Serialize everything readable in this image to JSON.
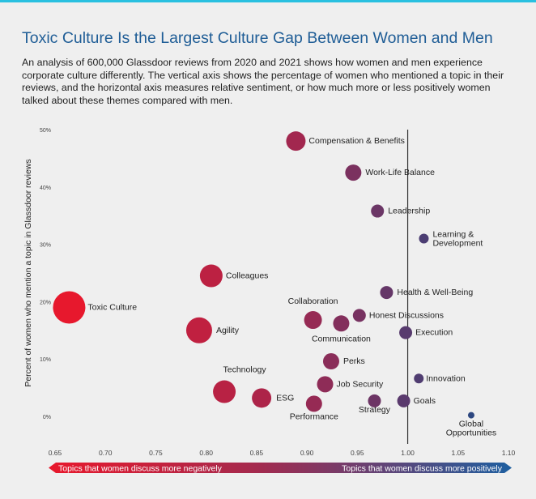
{
  "title": "Toxic Culture Is the Largest Culture Gap Between Women and Men",
  "subtitle": "An analysis of 600,000 Glassdoor reviews from 2020 and 2021 shows how women and men experience corporate culture differently. The vertical axis shows the percentage of women who mentioned a topic in their reviews, and the horizontal axis measures relative sentiment, or how much more or less positively women talked about these themes compared with men.",
  "colors": {
    "negative": "#e8182c",
    "positive": "#1e5fa0",
    "title": "#1f5d96",
    "accent_bar": "#29c0e0"
  },
  "chart_data": {
    "type": "scatter",
    "title": "",
    "xlabel": "",
    "ylabel": "Percent of women who mention a topic in Glassdoor reviews",
    "xlim": [
      0.65,
      1.1
    ],
    "ylim": [
      0,
      50
    ],
    "x_ticks": [
      "0.65",
      "0.70",
      "0.75",
      "0.80",
      "0.85",
      "0.90",
      "0.95",
      "1.00",
      "1.05",
      "1.10"
    ],
    "y_ticks": [
      "0%",
      "10%",
      "20%",
      "30%",
      "40%",
      "50%"
    ],
    "reference_line_x": 1.0,
    "grid": false,
    "bubble_size": "relative sentiment gap",
    "points": [
      {
        "label": "Compensation & Benefits",
        "x": 0.889,
        "y": 48.0,
        "size": 12
      },
      {
        "label": "Work-Life Balance",
        "x": 0.946,
        "y": 42.5,
        "size": 10
      },
      {
        "label": "Leadership",
        "x": 0.97,
        "y": 35.8,
        "size": 8
      },
      {
        "label": "Learning & Development",
        "x": 1.016,
        "y": 31.0,
        "size": 6
      },
      {
        "label": "Colleagues",
        "x": 0.805,
        "y": 24.5,
        "size": 14
      },
      {
        "label": "Health & Well-Being",
        "x": 0.979,
        "y": 21.6,
        "size": 8
      },
      {
        "label": "Toxic Culture",
        "x": 0.664,
        "y": 19.0,
        "size": 20
      },
      {
        "label": "Collaboration",
        "x": 0.906,
        "y": 16.8,
        "size": 11
      },
      {
        "label": "Communication",
        "x": 0.934,
        "y": 16.2,
        "size": 10
      },
      {
        "label": "Honest Discussions",
        "x": 0.952,
        "y": 17.6,
        "size": 8
      },
      {
        "label": "Agility",
        "x": 0.793,
        "y": 15.0,
        "size": 16
      },
      {
        "label": "Execution",
        "x": 0.998,
        "y": 14.6,
        "size": 8
      },
      {
        "label": "Perks",
        "x": 0.924,
        "y": 9.6,
        "size": 10
      },
      {
        "label": "Innovation",
        "x": 1.011,
        "y": 6.6,
        "size": 6
      },
      {
        "label": "Job Security",
        "x": 0.918,
        "y": 5.6,
        "size": 10
      },
      {
        "label": "Technology",
        "x": 0.818,
        "y": 4.3,
        "size": 14
      },
      {
        "label": "ESG",
        "x": 0.855,
        "y": 3.2,
        "size": 12
      },
      {
        "label": "Strategy",
        "x": 0.967,
        "y": 2.7,
        "size": 8
      },
      {
        "label": "Goals",
        "x": 0.996,
        "y": 2.7,
        "size": 8
      },
      {
        "label": "Performance",
        "x": 0.907,
        "y": 2.2,
        "size": 10
      },
      {
        "label": "Global Opportunities",
        "x": 1.063,
        "y": 0.2,
        "size": 4
      }
    ],
    "legend_bar": {
      "left_label": "Topics that women discuss more negatively",
      "right_label": "Topics that women discuss more positively"
    }
  }
}
